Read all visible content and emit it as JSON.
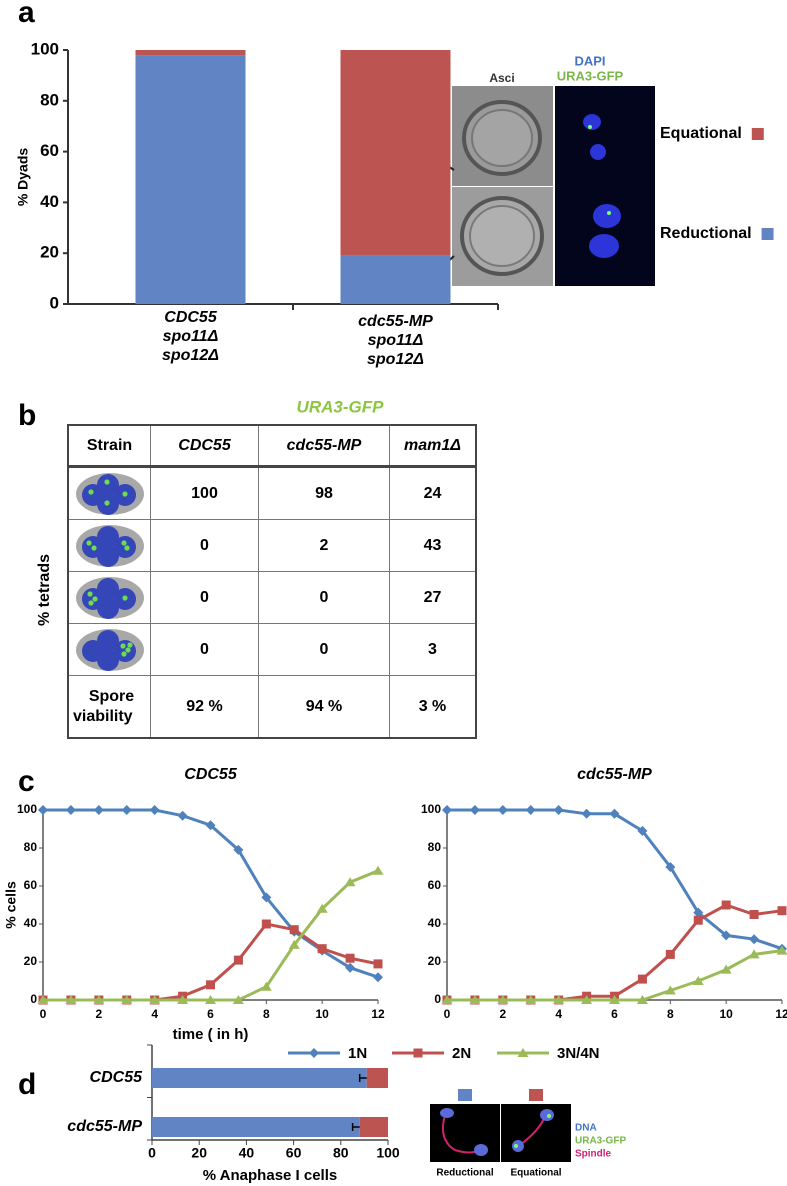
{
  "panel_labels": [
    "a",
    "b",
    "c",
    "d"
  ],
  "images_a": {
    "title": "Asci",
    "channels": [
      "DAPI",
      "URA3-GFP"
    ]
  },
  "images_d": {
    "channels": [
      "DNA",
      "URA3-GFP",
      "Spindle"
    ]
  },
  "table": {
    "title": "URA3-GFP",
    "side_label": "% tetrads",
    "header": [
      "Strain",
      "CDC55",
      "cdc55-MP",
      "mam1Δ"
    ],
    "rows": [
      [
        100,
        98,
        24
      ],
      [
        0,
        2,
        43
      ],
      [
        0,
        0,
        27
      ],
      [
        0,
        0,
        3
      ]
    ],
    "footer": {
      "label": [
        "Spore",
        "viability"
      ],
      "values": [
        "92 %",
        "94 %",
        "3 %"
      ]
    }
  },
  "chart_data": [
    {
      "type": "bar",
      "stacked": true,
      "ylabel": "% Dyads",
      "categories": [
        [
          "CDC55",
          "spo11Δ",
          "spo12Δ"
        ],
        [
          "cdc55-MP",
          "spo11Δ",
          "spo12Δ"
        ]
      ],
      "series": [
        {
          "name": "Reductional",
          "color": "#6185c4",
          "values": [
            98,
            19
          ]
        },
        {
          "name": "Equational",
          "color": "#bc5552",
          "values": [
            2,
            81
          ]
        }
      ],
      "ylim": [
        0,
        100
      ],
      "yticks": [
        0,
        20,
        40,
        60,
        80,
        100
      ]
    },
    {
      "type": "line",
      "titles": [
        "CDC55",
        "cdc55-MP"
      ],
      "xlabel": "time ( in h)",
      "ylabel": "% cells",
      "x": [
        0,
        1,
        2,
        3,
        4,
        5,
        6,
        7,
        8,
        9,
        10,
        11,
        12
      ],
      "xlim": [
        0,
        12
      ],
      "xticks": [
        0,
        2,
        4,
        6,
        8,
        10,
        12
      ],
      "ylim": [
        0,
        100
      ],
      "yticks": [
        0,
        20,
        40,
        60,
        80,
        100
      ],
      "series": [
        {
          "name": "1N",
          "color": "#4f81bd",
          "marker": "diamond",
          "values": [
            [
              100,
              100,
              100,
              100,
              100,
              97,
              92,
              79,
              54,
              36,
              26,
              17,
              12
            ],
            [
              100,
              100,
              100,
              100,
              100,
              98,
              98,
              89,
              70,
              46,
              34,
              32,
              27
            ]
          ]
        },
        {
          "name": "2N",
          "color": "#c0504d",
          "marker": "square",
          "values": [
            [
              0,
              0,
              0,
              0,
              0,
              2,
              8,
              21,
              40,
              37,
              27,
              22,
              19
            ],
            [
              0,
              0,
              0,
              0,
              0,
              2,
              2,
              11,
              24,
              42,
              50,
              45,
              47
            ]
          ]
        },
        {
          "name": "3N/4N",
          "color": "#9bbb59",
          "marker": "triangle",
          "values": [
            [
              0,
              0,
              0,
              0,
              0,
              0,
              0,
              0,
              7,
              29,
              48,
              62,
              68
            ],
            [
              0,
              0,
              0,
              0,
              0,
              0,
              0,
              0,
              5,
              10,
              16,
              24,
              26
            ]
          ]
        }
      ]
    },
    {
      "type": "bar",
      "orientation": "horizontal",
      "stacked": true,
      "xlabel": "% Anaphase I cells",
      "categories": [
        "CDC55",
        "cdc55-MP"
      ],
      "series": [
        {
          "name": "Reductional",
          "color": "#6185c4",
          "values": [
            91,
            88
          ],
          "errors": [
            3,
            3
          ]
        },
        {
          "name": "Equational",
          "color": "#bc5552",
          "values": [
            9,
            12
          ]
        }
      ],
      "xlim": [
        0,
        100
      ],
      "xticks": [
        0,
        20,
        40,
        60,
        80,
        100
      ]
    }
  ]
}
